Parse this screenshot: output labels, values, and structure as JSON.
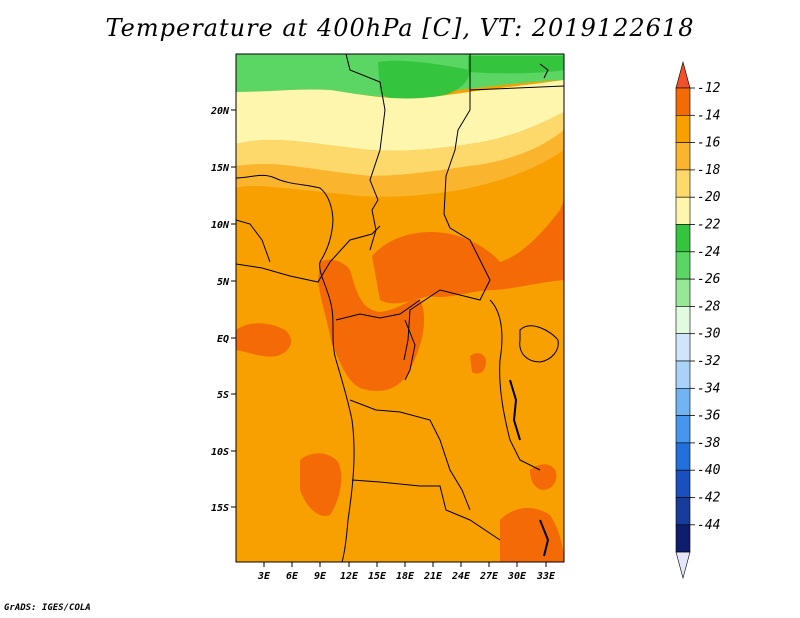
{
  "title": "Temperature at 400hPa [C], VT: 2019122618",
  "credit": "GrADS: IGES/COLA",
  "map": {
    "lat_ticks": [
      "20N",
      "15N",
      "10N",
      "5N",
      "EQ",
      "5S",
      "10S",
      "15S"
    ],
    "lon_ticks": [
      "3E",
      "6E",
      "9E",
      "12E",
      "15E",
      "18E",
      "21E",
      "24E",
      "27E",
      "30E",
      "33E"
    ]
  },
  "colorbar": {
    "labels": [
      "-12",
      "-14",
      "-16",
      "-18",
      "-20",
      "-22",
      "-24",
      "-26",
      "-28",
      "-30",
      "-32",
      "-34",
      "-36",
      "-38",
      "-40",
      "-42",
      "-44"
    ],
    "colors": [
      "#f0502a",
      "#f46a06",
      "#f7a000",
      "#fbb42e",
      "#fdd86a",
      "#fff6ae",
      "#34c43e",
      "#5bd563",
      "#96e896",
      "#e0fbe0",
      "#cfe6fa",
      "#a8d2f7",
      "#72b4f2",
      "#4596ec",
      "#2170dc",
      "#1a4fbe",
      "#163d9c",
      "#0e1d6c",
      "#e6e6fa"
    ]
  }
}
